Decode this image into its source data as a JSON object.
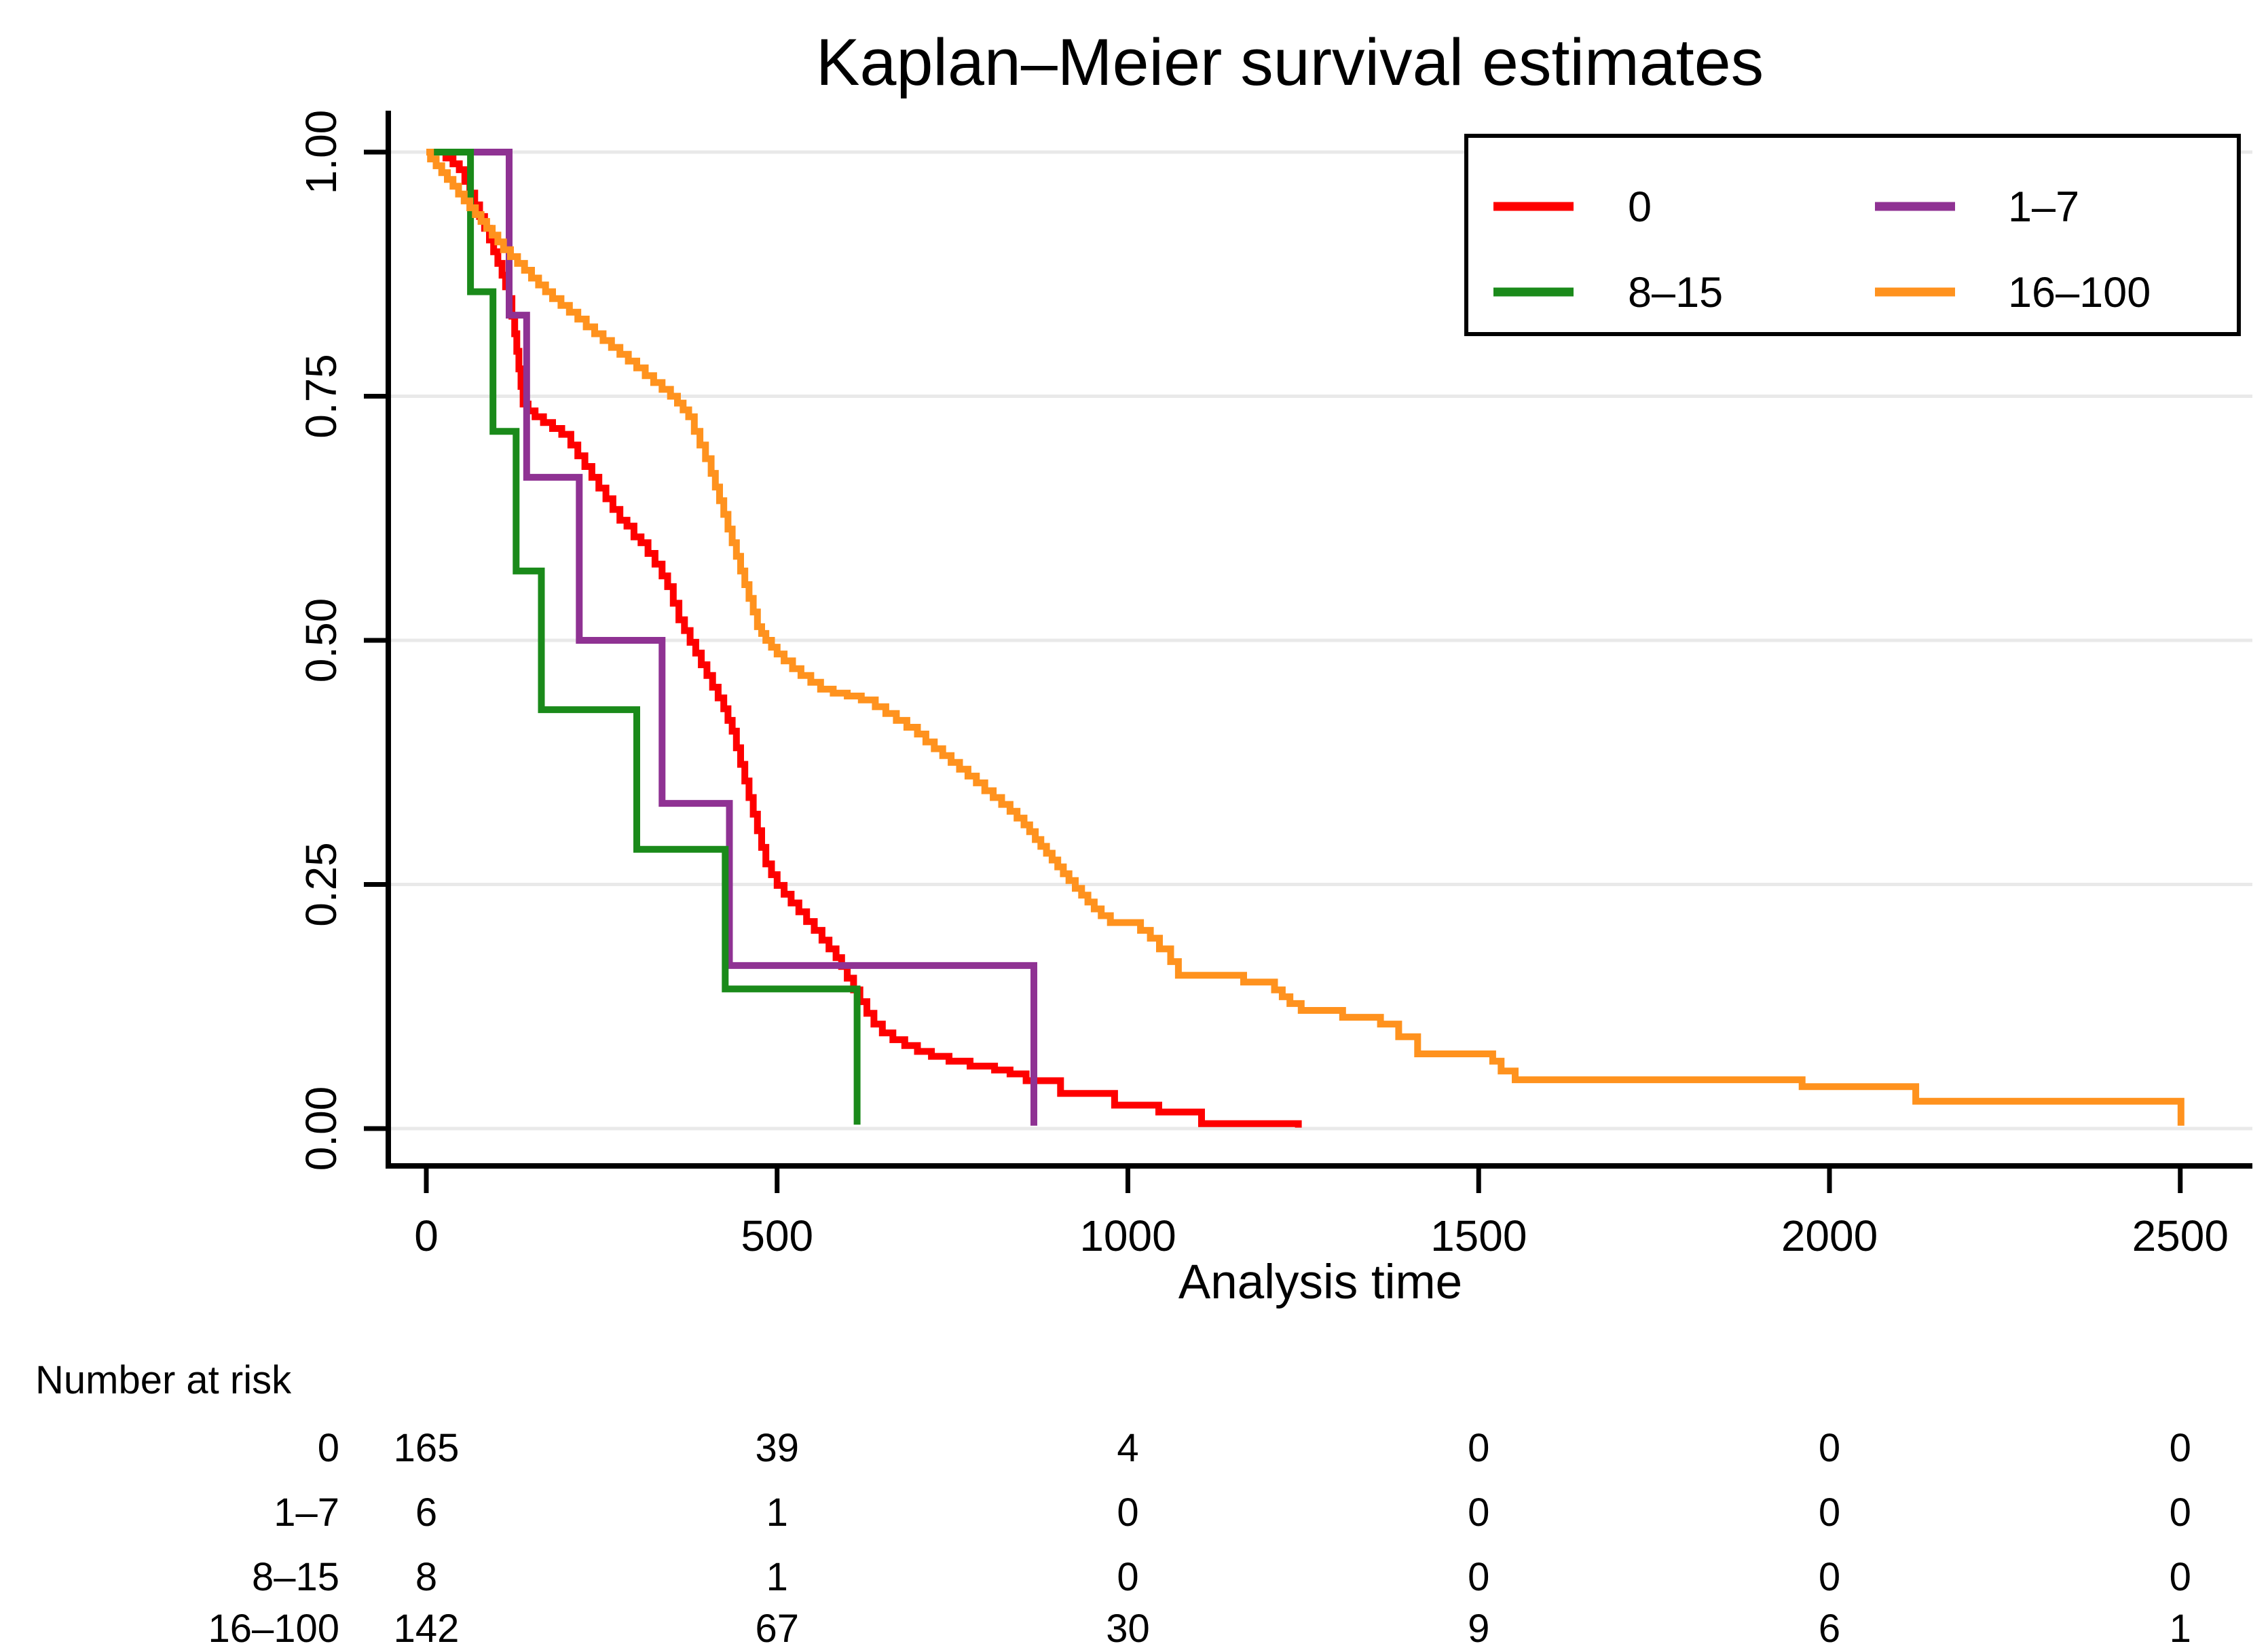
{
  "title": "Kaplan–Meier survival estimates",
  "axes": {
    "xlabel": "Analysis time",
    "xticks": [
      0,
      500,
      1000,
      1500,
      2000,
      2500
    ],
    "yticks": [
      "0.00",
      "0.25",
      "0.50",
      "0.75",
      "1.00"
    ]
  },
  "legend": {
    "items": [
      {
        "label": "0",
        "color": "#fe0000"
      },
      {
        "label": "1–7",
        "color": "#8f3293"
      },
      {
        "label": "8–15",
        "color": "#1a8a1a"
      },
      {
        "label": "16–100",
        "color": "#ff921e"
      }
    ]
  },
  "risk_table": {
    "header": "Number at risk",
    "time_points": [
      0,
      500,
      1000,
      1500,
      2000,
      2500
    ],
    "rows": [
      {
        "label": "0",
        "values": [
          165,
          39,
          4,
          0,
          0,
          0
        ]
      },
      {
        "label": "1–7",
        "values": [
          6,
          1,
          0,
          0,
          0,
          0
        ]
      },
      {
        "label": "8–15",
        "values": [
          8,
          1,
          0,
          0,
          0,
          0
        ]
      },
      {
        "label": "16–100",
        "values": [
          142,
          67,
          30,
          9,
          6,
          1
        ]
      }
    ]
  },
  "chart_data": {
    "type": "line",
    "subtype": "kaplan-meier-step",
    "title": "Kaplan–Meier survival estimates",
    "xlabel": "Analysis time",
    "ylabel": "",
    "xlim": [
      0,
      2600
    ],
    "ylim": [
      0,
      1
    ],
    "grid": "horizontal",
    "legend_position": "top-right",
    "series": [
      {
        "name": "0",
        "color": "#fe0000",
        "points": [
          [
            0,
            1
          ],
          [
            28,
            1
          ],
          [
            28,
            0.994
          ],
          [
            38,
            0.988
          ],
          [
            47,
            0.982
          ],
          [
            55,
            0.97
          ],
          [
            62,
            0.958
          ],
          [
            69,
            0.946
          ],
          [
            76,
            0.934
          ],
          [
            83,
            0.922
          ],
          [
            90,
            0.91
          ],
          [
            96,
            0.898
          ],
          [
            102,
            0.886
          ],
          [
            108,
            0.874
          ],
          [
            113,
            0.862
          ],
          [
            118,
            0.85
          ],
          [
            122,
            0.832
          ],
          [
            126,
            0.814
          ],
          [
            129,
            0.796
          ],
          [
            132,
            0.778
          ],
          [
            135,
            0.76
          ],
          [
            138,
            0.742
          ],
          [
            145,
            0.735
          ],
          [
            155,
            0.729
          ],
          [
            167,
            0.723
          ],
          [
            180,
            0.717
          ],
          [
            193,
            0.711
          ],
          [
            206,
            0.7
          ],
          [
            216,
            0.689
          ],
          [
            226,
            0.678
          ],
          [
            236,
            0.667
          ],
          [
            246,
            0.656
          ],
          [
            256,
            0.645
          ],
          [
            266,
            0.634
          ],
          [
            276,
            0.623
          ],
          [
            286,
            0.617
          ],
          [
            296,
            0.606
          ],
          [
            306,
            0.6
          ],
          [
            316,
            0.589
          ],
          [
            326,
            0.578
          ],
          [
            336,
            0.566
          ],
          [
            344,
            0.555
          ],
          [
            352,
            0.538
          ],
          [
            360,
            0.521
          ],
          [
            368,
            0.51
          ],
          [
            376,
            0.498
          ],
          [
            384,
            0.487
          ],
          [
            392,
            0.475
          ],
          [
            400,
            0.464
          ],
          [
            408,
            0.452
          ],
          [
            416,
            0.441
          ],
          [
            424,
            0.43
          ],
          [
            430,
            0.418
          ],
          [
            436,
            0.407
          ],
          [
            442,
            0.39
          ],
          [
            448,
            0.373
          ],
          [
            454,
            0.356
          ],
          [
            460,
            0.339
          ],
          [
            466,
            0.322
          ],
          [
            472,
            0.305
          ],
          [
            478,
            0.288
          ],
          [
            484,
            0.271
          ],
          [
            492,
            0.26
          ],
          [
            500,
            0.249
          ],
          [
            510,
            0.24
          ],
          [
            520,
            0.231
          ],
          [
            531,
            0.222
          ],
          [
            542,
            0.212
          ],
          [
            553,
            0.203
          ],
          [
            564,
            0.193
          ],
          [
            574,
            0.184
          ],
          [
            584,
            0.175
          ],
          [
            592,
            0.166
          ],
          [
            600,
            0.154
          ],
          [
            609,
            0.142
          ],
          [
            618,
            0.13
          ],
          [
            628,
            0.118
          ],
          [
            638,
            0.107
          ],
          [
            650,
            0.098
          ],
          [
            665,
            0.091
          ],
          [
            682,
            0.085
          ],
          [
            700,
            0.079
          ],
          [
            720,
            0.074
          ],
          [
            745,
            0.069
          ],
          [
            775,
            0.064
          ],
          [
            810,
            0.06
          ],
          [
            832,
            0.056
          ],
          [
            855,
            0.049
          ],
          [
            904,
            0.036
          ],
          [
            981,
            0.024
          ],
          [
            1044,
            0.017
          ],
          [
            1105,
            0.005
          ],
          [
            1243,
            0.005
          ],
          [
            1243,
            0.001
          ]
        ]
      },
      {
        "name": "1–7",
        "color": "#8f3293",
        "points": [
          [
            0,
            1
          ],
          [
            118,
            1
          ],
          [
            118,
            0.833
          ],
          [
            143,
            0.833
          ],
          [
            143,
            0.667
          ],
          [
            218,
            0.667
          ],
          [
            218,
            0.5
          ],
          [
            336,
            0.5
          ],
          [
            336,
            0.333
          ],
          [
            432,
            0.333
          ],
          [
            432,
            0.167
          ],
          [
            866,
            0.167
          ],
          [
            866,
            0.003
          ]
        ]
      },
      {
        "name": "8–15",
        "color": "#1a8a1a",
        "points": [
          [
            0,
            1
          ],
          [
            63,
            1
          ],
          [
            63,
            0.857
          ],
          [
            95,
            0.857
          ],
          [
            95,
            0.714
          ],
          [
            128,
            0.714
          ],
          [
            128,
            0.571
          ],
          [
            164,
            0.571
          ],
          [
            164,
            0.429
          ],
          [
            300,
            0.429
          ],
          [
            300,
            0.286
          ],
          [
            426,
            0.286
          ],
          [
            426,
            0.143
          ],
          [
            614,
            0.143
          ],
          [
            614,
            0.004
          ]
        ]
      },
      {
        "name": "16–100",
        "color": "#ff921e",
        "points": [
          [
            0,
            1
          ],
          [
            6,
            0.993
          ],
          [
            14,
            0.986
          ],
          [
            22,
            0.979
          ],
          [
            30,
            0.972
          ],
          [
            38,
            0.965
          ],
          [
            46,
            0.957
          ],
          [
            54,
            0.95
          ],
          [
            62,
            0.943
          ],
          [
            70,
            0.936
          ],
          [
            78,
            0.929
          ],
          [
            86,
            0.922
          ],
          [
            94,
            0.915
          ],
          [
            102,
            0.908
          ],
          [
            110,
            0.9
          ],
          [
            120,
            0.893
          ],
          [
            130,
            0.886
          ],
          [
            140,
            0.879
          ],
          [
            150,
            0.871
          ],
          [
            160,
            0.864
          ],
          [
            170,
            0.857
          ],
          [
            180,
            0.85
          ],
          [
            192,
            0.843
          ],
          [
            204,
            0.836
          ],
          [
            216,
            0.829
          ],
          [
            228,
            0.821
          ],
          [
            240,
            0.814
          ],
          [
            252,
            0.807
          ],
          [
            264,
            0.8
          ],
          [
            276,
            0.793
          ],
          [
            288,
            0.786
          ],
          [
            300,
            0.779
          ],
          [
            312,
            0.771
          ],
          [
            324,
            0.764
          ],
          [
            336,
            0.757
          ],
          [
            348,
            0.75
          ],
          [
            358,
            0.743
          ],
          [
            366,
            0.736
          ],
          [
            374,
            0.729
          ],
          [
            382,
            0.714
          ],
          [
            390,
            0.7
          ],
          [
            398,
            0.686
          ],
          [
            406,
            0.671
          ],
          [
            412,
            0.657
          ],
          [
            418,
            0.643
          ],
          [
            424,
            0.629
          ],
          [
            430,
            0.614
          ],
          [
            436,
            0.6
          ],
          [
            442,
            0.586
          ],
          [
            448,
            0.571
          ],
          [
            454,
            0.557
          ],
          [
            460,
            0.543
          ],
          [
            466,
            0.529
          ],
          [
            472,
            0.514
          ],
          [
            478,
            0.507
          ],
          [
            484,
            0.5
          ],
          [
            492,
            0.493
          ],
          [
            500,
            0.486
          ],
          [
            510,
            0.479
          ],
          [
            522,
            0.471
          ],
          [
            534,
            0.464
          ],
          [
            548,
            0.457
          ],
          [
            562,
            0.45
          ],
          [
            580,
            0.446
          ],
          [
            600,
            0.443
          ],
          [
            620,
            0.439
          ],
          [
            640,
            0.432
          ],
          [
            655,
            0.425
          ],
          [
            670,
            0.418
          ],
          [
            685,
            0.411
          ],
          [
            700,
            0.404
          ],
          [
            712,
            0.396
          ],
          [
            724,
            0.389
          ],
          [
            736,
            0.382
          ],
          [
            748,
            0.375
          ],
          [
            760,
            0.368
          ],
          [
            772,
            0.361
          ],
          [
            784,
            0.354
          ],
          [
            796,
            0.346
          ],
          [
            808,
            0.339
          ],
          [
            820,
            0.332
          ],
          [
            832,
            0.325
          ],
          [
            842,
            0.318
          ],
          [
            852,
            0.311
          ],
          [
            860,
            0.304
          ],
          [
            868,
            0.296
          ],
          [
            876,
            0.289
          ],
          [
            884,
            0.282
          ],
          [
            892,
            0.275
          ],
          [
            900,
            0.268
          ],
          [
            908,
            0.261
          ],
          [
            916,
            0.254
          ],
          [
            925,
            0.246
          ],
          [
            934,
            0.239
          ],
          [
            943,
            0.232
          ],
          [
            952,
            0.225
          ],
          [
            962,
            0.218
          ],
          [
            975,
            0.211
          ],
          [
            1018,
            0.203
          ],
          [
            1032,
            0.195
          ],
          [
            1045,
            0.184
          ],
          [
            1061,
            0.171
          ],
          [
            1072,
            0.157
          ],
          [
            1165,
            0.15
          ],
          [
            1209,
            0.142
          ],
          [
            1220,
            0.135
          ],
          [
            1231,
            0.128
          ],
          [
            1247,
            0.121
          ],
          [
            1306,
            0.114
          ],
          [
            1360,
            0.107
          ],
          [
            1386,
            0.094
          ],
          [
            1413,
            0.0765
          ],
          [
            1520,
            0.069
          ],
          [
            1532,
            0.059
          ],
          [
            1552,
            0.05
          ],
          [
            1961,
            0.043
          ],
          [
            2123,
            0.028
          ],
          [
            2501,
            0.028
          ],
          [
            2501,
            0.003
          ]
        ]
      }
    ]
  }
}
